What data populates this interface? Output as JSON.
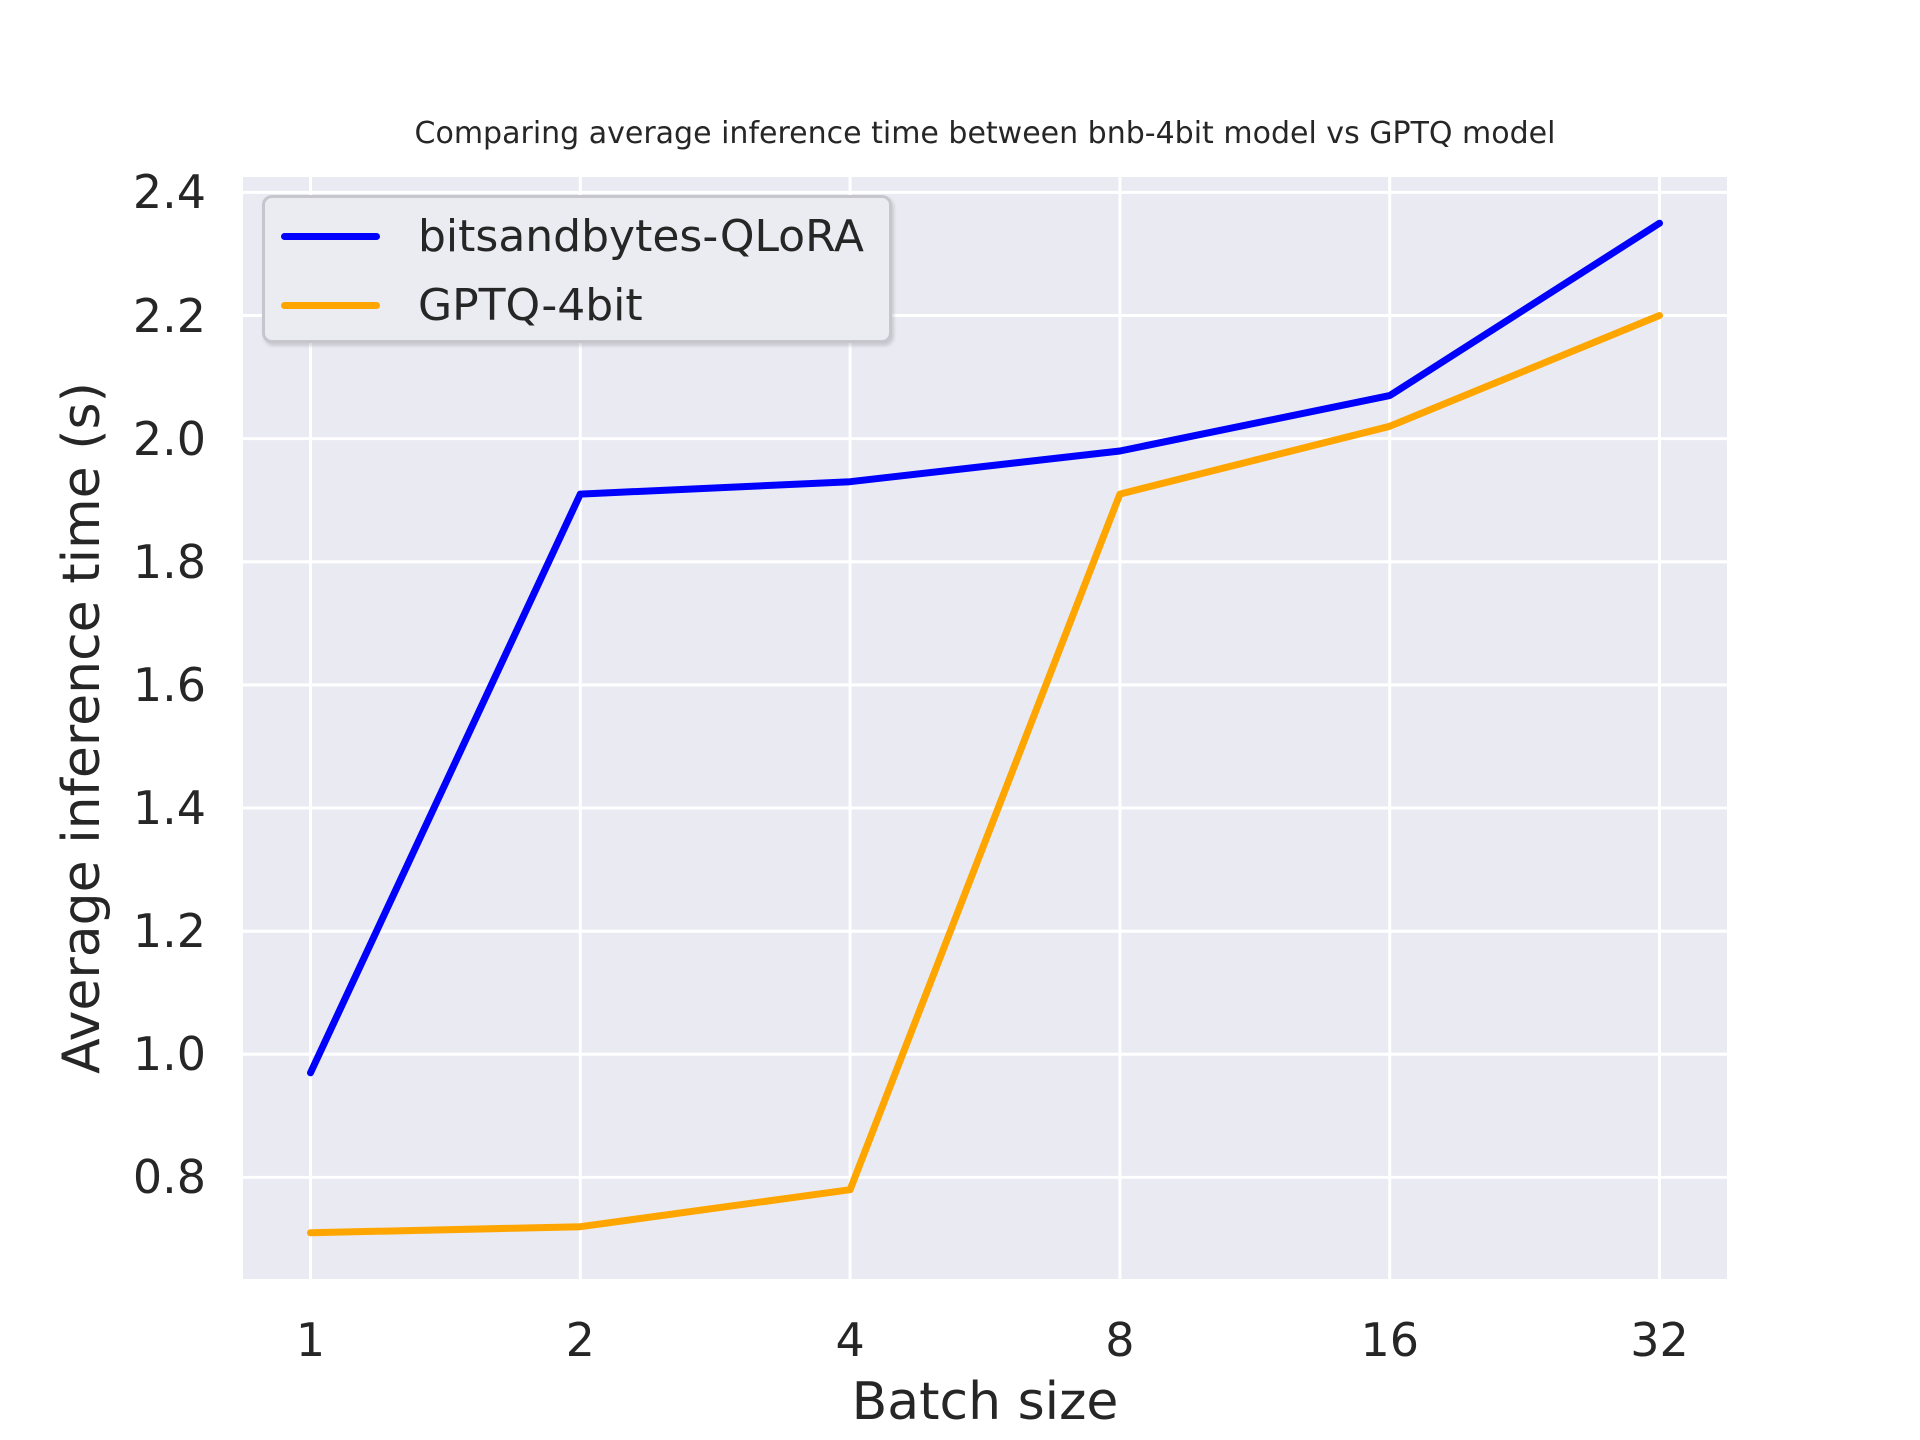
{
  "chart_data": {
    "type": "line",
    "title": "Comparing average inference time between bnb-4bit model vs GPTQ model",
    "xlabel": "Batch size",
    "ylabel": "Average inference time (s)",
    "categories": [
      1,
      2,
      4,
      8,
      16,
      32
    ],
    "x_tick_labels": [
      "1",
      "2",
      "4",
      "8",
      "16",
      "32"
    ],
    "y_tick_labels": [
      "0.8",
      "1.0",
      "1.2",
      "1.4",
      "1.6",
      "1.8",
      "2.0",
      "2.2",
      "2.4"
    ],
    "y_ticks": [
      0.8,
      1.0,
      1.2,
      1.4,
      1.6,
      1.8,
      2.0,
      2.2,
      2.4
    ],
    "ylim": [
      0.635,
      2.425
    ],
    "xlim_index": [
      -0.25,
      5.25
    ],
    "grid": true,
    "x_scale": "log2-categorical",
    "legend_position": "upper-left",
    "series": [
      {
        "name": "bitsandbytes-QLoRA",
        "color": "#0000ff",
        "values": [
          0.97,
          1.91,
          1.93,
          1.98,
          2.07,
          2.35
        ]
      },
      {
        "name": "GPTQ-4bit",
        "color": "#ffa500",
        "values": [
          0.71,
          0.72,
          0.78,
          1.91,
          2.02,
          2.2
        ]
      }
    ],
    "colors": {
      "plot_background": "#eaeaf2",
      "gridline": "#ffffff",
      "text": "#262626",
      "legend_background": "#ebebf2",
      "legend_border": "#c6c6cc"
    }
  }
}
